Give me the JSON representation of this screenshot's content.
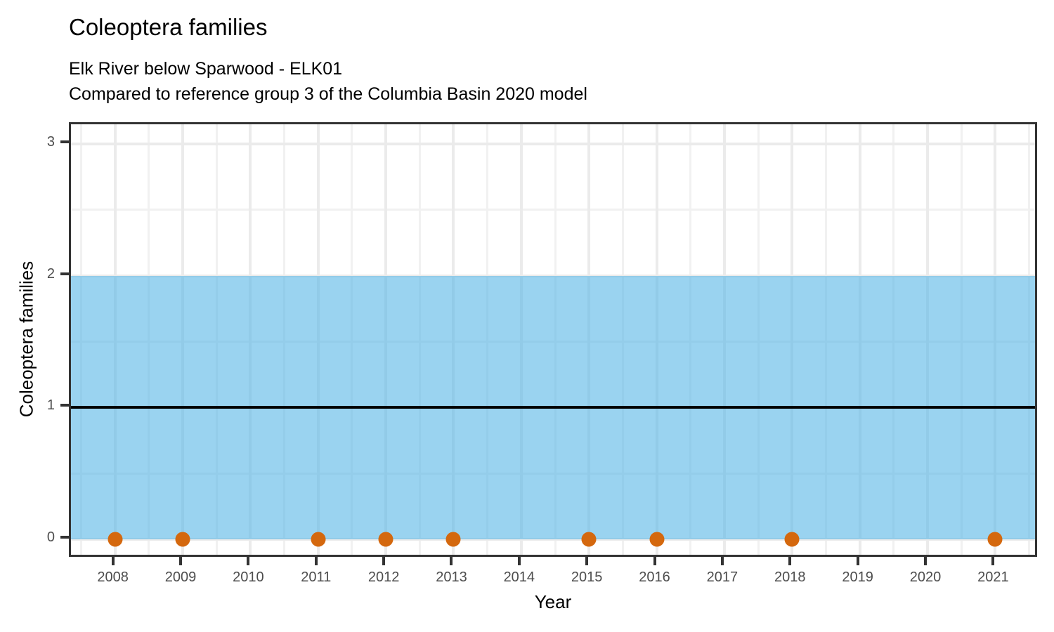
{
  "chart": {
    "title": "Coleoptera families",
    "subtitle_line1": "Elk River below Sparwood - ELK01",
    "subtitle_line2": "Compared to reference group 3 of the Columbia Basin 2020 model",
    "xlabel": "Year",
    "ylabel": "Coleoptera families"
  },
  "chart_data": {
    "type": "scatter",
    "title": "Coleoptera families",
    "subtitle": "Elk River below Sparwood - ELK01 / Compared to reference group 3 of the Columbia Basin 2020 model",
    "xlabel": "Year",
    "ylabel": "Coleoptera families",
    "points": {
      "x": [
        2008,
        2009,
        2011,
        2012,
        2013,
        2015,
        2016,
        2018,
        2021
      ],
      "y": [
        0,
        0,
        0,
        0,
        0,
        0,
        0,
        0,
        0
      ]
    },
    "reference_band": {
      "ymin": 0,
      "ymax": 2
    },
    "reference_line": {
      "y": 1
    },
    "x_ticks": [
      2008,
      2009,
      2010,
      2011,
      2012,
      2013,
      2014,
      2015,
      2016,
      2017,
      2018,
      2019,
      2020,
      2021
    ],
    "y_ticks": [
      0,
      1,
      2,
      3
    ],
    "x_minor_ticks": [
      2007.5,
      2008.5,
      2009.5,
      2010.5,
      2011.5,
      2012.5,
      2013.5,
      2014.5,
      2015.5,
      2016.5,
      2017.5,
      2018.5,
      2019.5,
      2020.5,
      2021.5
    ],
    "y_minor_ticks": [
      0.5,
      1.5,
      2.5
    ],
    "xlim": [
      2007.35,
      2021.65
    ],
    "ylim": [
      -0.15,
      3.15
    ],
    "grid": true,
    "legend": "none",
    "colors": {
      "point": "#d4680e",
      "band": "rgba(87,182,230,0.6)",
      "reference_line": "#000000",
      "grid_major": "#ebebeb",
      "grid_minor": "#f1f1f1",
      "panel_border": "#333333",
      "tick": "#333333",
      "tick_label": "#4d4d4d"
    }
  }
}
